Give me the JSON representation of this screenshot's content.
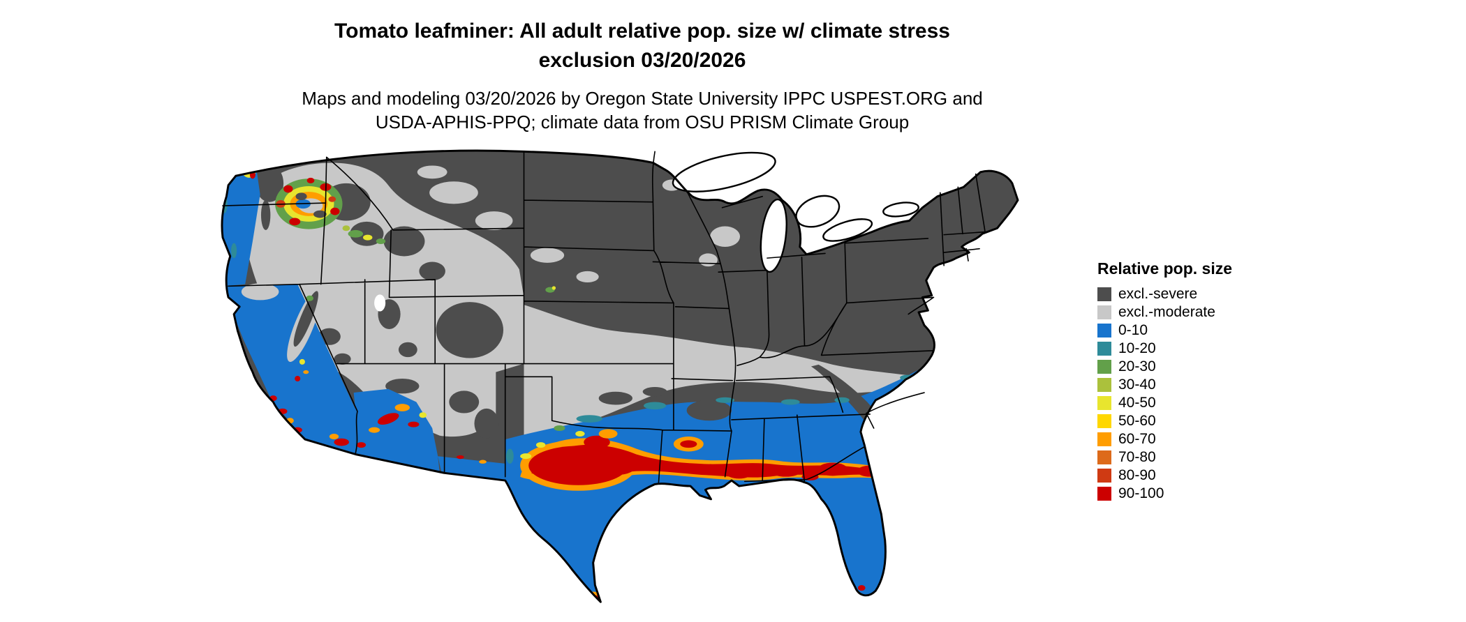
{
  "title": {
    "line1": "Tomato leafminer: All adult relative pop. size w/ climate stress",
    "line2": "exclusion 03/20/2026"
  },
  "subtitle": {
    "line1": "Maps and modeling 03/20/2026 by Oregon State University IPPC USPEST.ORG and",
    "line2": "USDA-APHIS-PPQ; climate data from OSU PRISM Climate Group"
  },
  "legend": {
    "title": "Relative pop. size",
    "items": [
      {
        "label": "excl.-severe",
        "color_key": "severe"
      },
      {
        "label": "excl.-moderate",
        "color_key": "moderate"
      },
      {
        "label": "0-10",
        "color_key": "p0"
      },
      {
        "label": "10-20",
        "color_key": "p10"
      },
      {
        "label": "20-30",
        "color_key": "p20"
      },
      {
        "label": "30-40",
        "color_key": "p30"
      },
      {
        "label": "40-50",
        "color_key": "p40"
      },
      {
        "label": "50-60",
        "color_key": "p50"
      },
      {
        "label": "60-70",
        "color_key": "p60"
      },
      {
        "label": "70-80",
        "color_key": "p70"
      },
      {
        "label": "80-90",
        "color_key": "p80"
      },
      {
        "label": "90-100",
        "color_key": "p90"
      }
    ]
  },
  "map": {
    "region": "Continental United States (lower 48 states)",
    "background": "#ffffff",
    "border_color": "#000000",
    "palette": {
      "severe": "#4d4d4d",
      "moderate": "#c8c8c8",
      "p0": "#1874cd",
      "p10": "#2e8b99",
      "p20": "#62a04a",
      "p30": "#abc13c",
      "p40": "#e8e52e",
      "p50": "#ffd700",
      "p60": "#ff9d00",
      "p70": "#dd6a1a",
      "p80": "#cf3a13",
      "p90": "#cc0000"
    }
  }
}
